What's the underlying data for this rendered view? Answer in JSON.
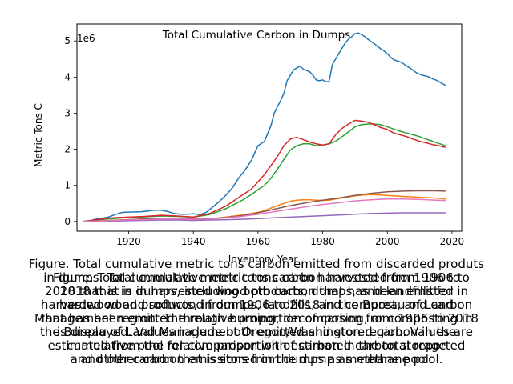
{
  "chart_data": {
    "type": "line",
    "title": "Total Cumulative Carbon in Dumps",
    "xlabel": "Inventory Year",
    "ylabel": "Metric Tons C",
    "y_offset_label": "1e6",
    "xlim": [
      1904,
      2023
    ],
    "ylim": [
      -0.27,
      5.47
    ],
    "y_unit_scale": 1000000,
    "x_ticks": [
      1920,
      1940,
      1960,
      1980,
      2000,
      2020
    ],
    "x_tick_labels": [
      "1920",
      "1940",
      "1960",
      "1980",
      "2000",
      "2020"
    ],
    "y_ticks": [
      0,
      1,
      2,
      3,
      4,
      5
    ],
    "y_tick_labels": [
      "0",
      "1",
      "2",
      "3",
      "4",
      "5"
    ],
    "grid": false,
    "series": [
      {
        "color": "#1f77b4",
        "x": [
          1906,
          1908,
          1910,
          1912,
          1914,
          1916,
          1918,
          1920,
          1924,
          1928,
          1930,
          1932,
          1934,
          1936,
          1938,
          1940,
          1942,
          1944,
          1946,
          1948,
          1950,
          1952,
          1954,
          1956,
          1958,
          1960,
          1962,
          1964,
          1965,
          1966,
          1967,
          1968,
          1969,
          1970,
          1971,
          1972,
          1973,
          1974,
          1975,
          1976,
          1977,
          1978,
          1979,
          1980,
          1981,
          1982,
          1983,
          1984,
          1985,
          1986,
          1987,
          1988,
          1989,
          1990,
          1991,
          1992,
          1993,
          1994,
          1995,
          1996,
          1997,
          1998,
          1999,
          2000,
          2001,
          2002,
          2003,
          2004,
          2005,
          2006,
          2007,
          2008,
          2009,
          2010,
          2011,
          2012,
          2013,
          2014,
          2015,
          2016,
          2017,
          2018
        ],
        "values": [
          0.0,
          0.02,
          0.07,
          0.09,
          0.13,
          0.2,
          0.25,
          0.26,
          0.27,
          0.31,
          0.31,
          0.28,
          0.22,
          0.2,
          0.2,
          0.21,
          0.19,
          0.25,
          0.4,
          0.55,
          0.72,
          0.92,
          1.2,
          1.42,
          1.7,
          2.1,
          2.22,
          2.65,
          3.0,
          3.18,
          3.35,
          3.55,
          3.9,
          4.05,
          4.2,
          4.25,
          4.3,
          4.22,
          4.18,
          4.15,
          4.05,
          3.92,
          3.9,
          3.92,
          3.87,
          3.88,
          4.35,
          4.5,
          4.65,
          4.8,
          4.95,
          5.05,
          5.12,
          5.2,
          5.22,
          5.18,
          5.12,
          5.05,
          4.98,
          4.92,
          4.85,
          4.78,
          4.72,
          4.65,
          4.55,
          4.48,
          4.45,
          4.42,
          4.37,
          4.3,
          4.25,
          4.18,
          4.12,
          4.08,
          4.05,
          4.03,
          4.0,
          3.95,
          3.92,
          3.87,
          3.82,
          3.77
        ]
      },
      {
        "color": "#ff7f0e",
        "x": [
          1906,
          1910,
          1915,
          1920,
          1925,
          1930,
          1935,
          1940,
          1945,
          1950,
          1955,
          1960,
          1962,
          1964,
          1966,
          1968,
          1970,
          1972,
          1974,
          1976,
          1978,
          1980,
          1982,
          1984,
          1986,
          1988,
          1990,
          1992,
          1994,
          1996,
          1998,
          2000,
          2002,
          2004,
          2006,
          2008,
          2010,
          2012,
          2014,
          2016,
          2018
        ],
        "values": [
          0.0,
          0.01,
          0.03,
          0.05,
          0.07,
          0.09,
          0.09,
          0.06,
          0.07,
          0.12,
          0.18,
          0.25,
          0.3,
          0.37,
          0.44,
          0.5,
          0.56,
          0.59,
          0.6,
          0.6,
          0.59,
          0.58,
          0.59,
          0.62,
          0.65,
          0.68,
          0.71,
          0.73,
          0.74,
          0.74,
          0.73,
          0.72,
          0.71,
          0.7,
          0.69,
          0.68,
          0.67,
          0.66,
          0.65,
          0.64,
          0.62
        ]
      },
      {
        "color": "#2ca02c",
        "x": [
          1906,
          1910,
          1915,
          1920,
          1925,
          1930,
          1935,
          1940,
          1945,
          1950,
          1955,
          1958,
          1960,
          1962,
          1964,
          1966,
          1968,
          1970,
          1972,
          1974,
          1976,
          1978,
          1980,
          1982,
          1984,
          1986,
          1988,
          1990,
          1992,
          1994,
          1996,
          1998,
          2000,
          2002,
          2004,
          2006,
          2008,
          2010,
          2012,
          2014,
          2016,
          2018
        ],
        "values": [
          0.0,
          0.04,
          0.08,
          0.11,
          0.13,
          0.15,
          0.14,
          0.12,
          0.19,
          0.35,
          0.58,
          0.75,
          0.88,
          1.0,
          1.2,
          1.45,
          1.72,
          1.98,
          2.1,
          2.15,
          2.15,
          2.1,
          2.12,
          2.15,
          2.22,
          2.35,
          2.48,
          2.62,
          2.68,
          2.7,
          2.7,
          2.68,
          2.62,
          2.56,
          2.5,
          2.45,
          2.4,
          2.35,
          2.28,
          2.22,
          2.16,
          2.1
        ]
      },
      {
        "color": "#d62728",
        "x": [
          1906,
          1910,
          1915,
          1920,
          1925,
          1930,
          1935,
          1940,
          1945,
          1950,
          1955,
          1958,
          1960,
          1962,
          1964,
          1966,
          1968,
          1970,
          1972,
          1974,
          1976,
          1978,
          1980,
          1982,
          1984,
          1986,
          1988,
          1990,
          1992,
          1994,
          1996,
          1998,
          2000,
          2002,
          2004,
          2006,
          2008,
          2010,
          2012,
          2014,
          2016,
          2018
        ],
        "values": [
          0.0,
          0.05,
          0.1,
          0.12,
          0.14,
          0.17,
          0.15,
          0.12,
          0.22,
          0.42,
          0.72,
          0.9,
          1.1,
          1.3,
          1.55,
          1.8,
          2.1,
          2.28,
          2.33,
          2.27,
          2.2,
          2.15,
          2.12,
          2.15,
          2.4,
          2.58,
          2.7,
          2.8,
          2.78,
          2.75,
          2.68,
          2.6,
          2.55,
          2.45,
          2.4,
          2.35,
          2.28,
          2.22,
          2.18,
          2.13,
          2.1,
          2.05
        ]
      },
      {
        "color": "#9467bd",
        "x": [
          1906,
          1910,
          1915,
          1920,
          1925,
          1930,
          1935,
          1940,
          1945,
          1950,
          1955,
          1960,
          1965,
          1970,
          1975,
          1980,
          1985,
          1990,
          1995,
          2000,
          2005,
          2010,
          2015,
          2018
        ],
        "values": [
          0.0,
          0.0,
          0.01,
          0.02,
          0.03,
          0.04,
          0.04,
          0.03,
          0.04,
          0.05,
          0.06,
          0.08,
          0.1,
          0.12,
          0.14,
          0.16,
          0.18,
          0.2,
          0.22,
          0.23,
          0.24,
          0.24,
          0.24,
          0.24
        ]
      },
      {
        "color": "#8c564b",
        "x": [
          1906,
          1910,
          1915,
          1920,
          1925,
          1930,
          1935,
          1940,
          1945,
          1950,
          1955,
          1960,
          1965,
          1970,
          1975,
          1980,
          1985,
          1990,
          1995,
          2000,
          2005,
          2010,
          2015,
          2018
        ],
        "values": [
          0.0,
          0.01,
          0.03,
          0.05,
          0.07,
          0.09,
          0.09,
          0.07,
          0.08,
          0.11,
          0.16,
          0.24,
          0.34,
          0.44,
          0.52,
          0.59,
          0.65,
          0.72,
          0.78,
          0.82,
          0.84,
          0.85,
          0.85,
          0.84
        ]
      },
      {
        "color": "#e377c2",
        "x": [
          1906,
          1910,
          1915,
          1920,
          1925,
          1930,
          1935,
          1940,
          1945,
          1950,
          1955,
          1960,
          1965,
          1970,
          1975,
          1980,
          1985,
          1990,
          1995,
          2000,
          2005,
          2010,
          2015,
          2018
        ],
        "values": [
          0.0,
          0.01,
          0.02,
          0.04,
          0.05,
          0.07,
          0.07,
          0.06,
          0.07,
          0.1,
          0.14,
          0.2,
          0.27,
          0.34,
          0.41,
          0.47,
          0.52,
          0.57,
          0.6,
          0.62,
          0.62,
          0.61,
          0.59,
          0.58
        ]
      }
    ]
  },
  "caption": {
    "text": "Figure. Total cumulative metric tons carbon emitted from discarded produts\nin dumps. Total cumulative metric tons carbon harvested from 1906 to\n2018 that is in dumps, including both carbon that has been emitted in\nharvested wood products, in dumps, landfills, and compost, and carbon\nthat has been emitted through burning, decomposing, or composting in\nthe Bureau of Land Management Oregon/Washington region. Values are\nestimated from the relative proportion of carbon in the total reported\nand other carbon that is stored in the dump as methane pool.",
    "overlap_text": "Figure. Total cumulative metric tons carbon harvested from 1906 to\n2018 that is in harvested wood products, dumps, and landfills for\nhardwood and softwood from 1906 to 2018 in the Bureau of Land\nManagement region. The relative proportion of carbon from 1906 to 2018\nis displayed. Values include both emitted and stored carbon in the\ncumulative pool for comparison with estimated carbon storage\nand other carbon emissions from dumps as methane pool."
  }
}
